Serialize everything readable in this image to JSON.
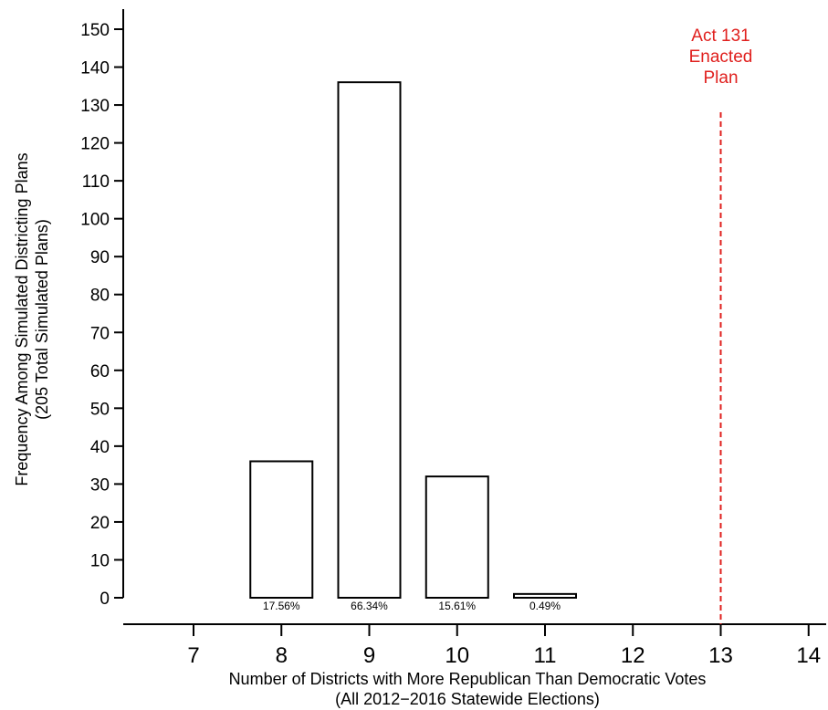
{
  "chart_data": {
    "type": "bar",
    "xlabel": "Number of Districts with More Republican Than Democratic Votes",
    "xlabel_sub": "(All 2012−2016 Statewide Elections)",
    "ylabel": "Frequency Among Simulated Districting Plans",
    "ylabel_sub": "(205 Total Simulated Plans)",
    "x_ticks": [
      7,
      8,
      9,
      10,
      11,
      12,
      13,
      14
    ],
    "y_ticks": [
      0,
      10,
      20,
      30,
      40,
      50,
      60,
      70,
      80,
      90,
      100,
      110,
      120,
      130,
      140,
      150
    ],
    "xlim": [
      6.2,
      14.2
    ],
    "ylim": [
      0,
      150
    ],
    "grid": false,
    "bars": [
      {
        "x": 8,
        "value": 36,
        "label": "17.56%"
      },
      {
        "x": 9,
        "value": 136,
        "label": "66.34%"
      },
      {
        "x": 10,
        "value": 32,
        "label": "15.61%"
      },
      {
        "x": 11,
        "value": 1,
        "label": "0.49%"
      }
    ],
    "reference_line": {
      "x": 13,
      "color": "#e0201e",
      "style": "dashed",
      "label_lines": [
        "Act 131",
        "Enacted",
        "Plan"
      ]
    }
  }
}
